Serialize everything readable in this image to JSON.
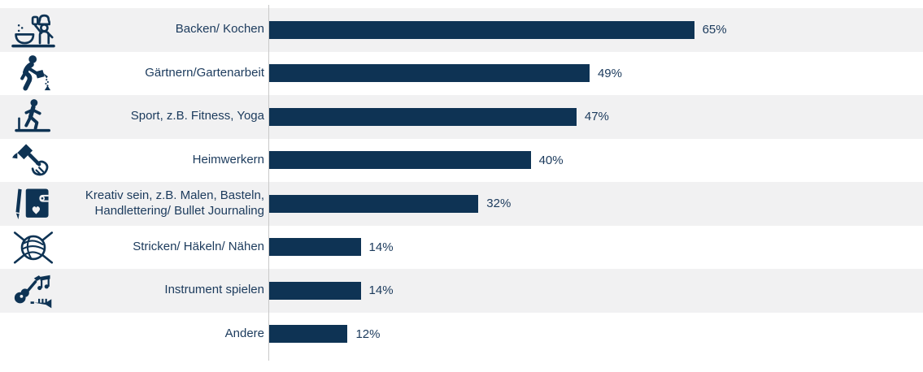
{
  "chart_data": {
    "type": "bar",
    "orientation": "horizontal",
    "title": "",
    "xlabel": "",
    "ylabel": "",
    "xlim": [
      0,
      100
    ],
    "grid": false,
    "legend": "none",
    "value_label_position": "outside-end",
    "category_label_position": "left",
    "row_striping": "alternating (odd rows light gray)",
    "bar_color": "#0E3354",
    "label_color": "#1B3A5C",
    "stripe_color": "#F1F1F2",
    "axis_line_color": "#C9C9C9",
    "categories": [
      "Backen/ Kochen",
      "Gärtnern/Gartenarbeit",
      "Sport, z.B. Fitness, Yoga",
      "Heimwerkern",
      "Kreativ sein, z.B. Malen, Basteln, Handlettering/ Bullet Journaling",
      "Stricken/ Häkeln/ Nähen",
      "Instrument spielen",
      "Andere"
    ],
    "values": [
      65,
      49,
      47,
      40,
      32,
      14,
      14,
      12
    ],
    "value_labels": [
      "65%",
      "49%",
      "47%",
      "40%",
      "32%",
      "14%",
      "14%",
      "12%"
    ],
    "icons": [
      "cooking-chef-icon",
      "gardening-watering-icon",
      "sport-treadmill-icon",
      "diy-hammer-icon",
      "creative-journal-pen-icon",
      "knitting-yarn-icon",
      "music-instruments-icon",
      null
    ]
  }
}
